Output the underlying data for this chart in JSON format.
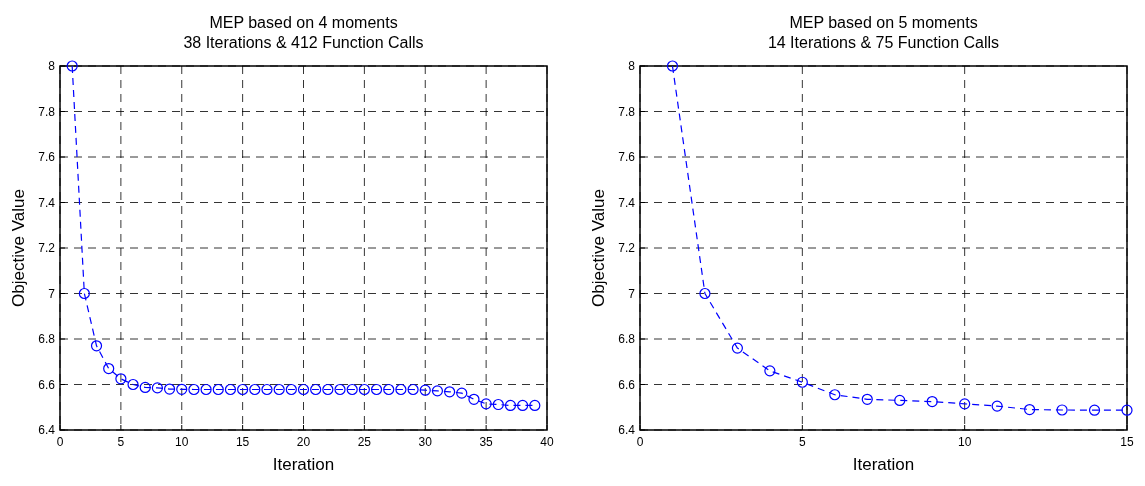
{
  "chart_data": [
    {
      "type": "line",
      "title": "MEP based on 4 moments\n38 Iterations & 412 Function Calls",
      "xlabel": "Iteration",
      "ylabel": "Objective Value",
      "x": [
        1,
        2,
        3,
        4,
        5,
        6,
        7,
        8,
        9,
        10,
        11,
        12,
        13,
        14,
        15,
        16,
        17,
        18,
        19,
        20,
        21,
        22,
        23,
        24,
        25,
        26,
        27,
        28,
        29,
        30,
        31,
        32,
        33,
        34,
        35,
        36,
        37,
        38,
        39
      ],
      "series": [
        {
          "color": "#0000ff",
          "values": [
            8,
            7.0,
            6.77,
            6.67,
            6.625,
            6.6,
            6.587,
            6.585,
            6.58,
            6.579,
            6.578,
            6.578,
            6.578,
            6.578,
            6.578,
            6.578,
            6.578,
            6.578,
            6.578,
            6.578,
            6.578,
            6.578,
            6.578,
            6.578,
            6.578,
            6.578,
            6.578,
            6.578,
            6.578,
            6.575,
            6.572,
            6.568,
            6.562,
            6.535,
            6.515,
            6.512,
            6.508,
            6.508,
            6.508
          ]
        }
      ],
      "xlim": [
        0,
        40
      ],
      "xticks": [
        0,
        5,
        10,
        15,
        20,
        25,
        30,
        35,
        40
      ],
      "ylim": [
        6.4,
        8
      ],
      "yticks": [
        6.4,
        6.6,
        6.8,
        7,
        7.2,
        7.4,
        7.6,
        7.8,
        8
      ],
      "grid": true,
      "marker": "circle",
      "line_style": "dashed"
    },
    {
      "type": "line",
      "title": "MEP based on 5 moments\n14 Iterations & 75 Function Calls",
      "xlabel": "Iteration",
      "ylabel": "Objective Value",
      "x": [
        1,
        2,
        3,
        4,
        5,
        6,
        7,
        8,
        9,
        10,
        11,
        12,
        13,
        14,
        15
      ],
      "series": [
        {
          "color": "#0000ff",
          "values": [
            8,
            7.0,
            6.76,
            6.66,
            6.61,
            6.555,
            6.535,
            6.53,
            6.525,
            6.515,
            6.505,
            6.49,
            6.488,
            6.487,
            6.487
          ]
        }
      ],
      "xlim": [
        0,
        15
      ],
      "xticks": [
        0,
        5,
        10,
        15
      ],
      "ylim": [
        6.4,
        8
      ],
      "yticks": [
        6.4,
        6.6,
        6.8,
        7,
        7.2,
        7.4,
        7.6,
        7.8,
        8
      ],
      "grid": true,
      "marker": "circle",
      "line_style": "dashed"
    }
  ]
}
